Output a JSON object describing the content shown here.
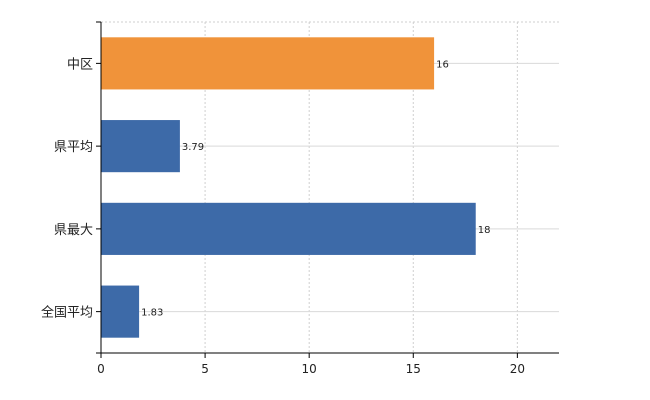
{
  "chart_data": {
    "type": "bar",
    "orientation": "horizontal",
    "categories": [
      "中区",
      "県平均",
      "県最大",
      "全国平均"
    ],
    "values": [
      16,
      3.79,
      18,
      1.83
    ],
    "value_labels": [
      "16",
      "3.79",
      "18",
      "1.83"
    ],
    "bar_colors": [
      "#f0933a",
      "#3d6aa8",
      "#3d6aa8",
      "#3d6aa8"
    ],
    "xlim": [
      0,
      22
    ],
    "xticks": [
      0,
      5,
      10,
      15,
      20
    ],
    "grid": true,
    "title": "",
    "xlabel": "",
    "ylabel": ""
  }
}
